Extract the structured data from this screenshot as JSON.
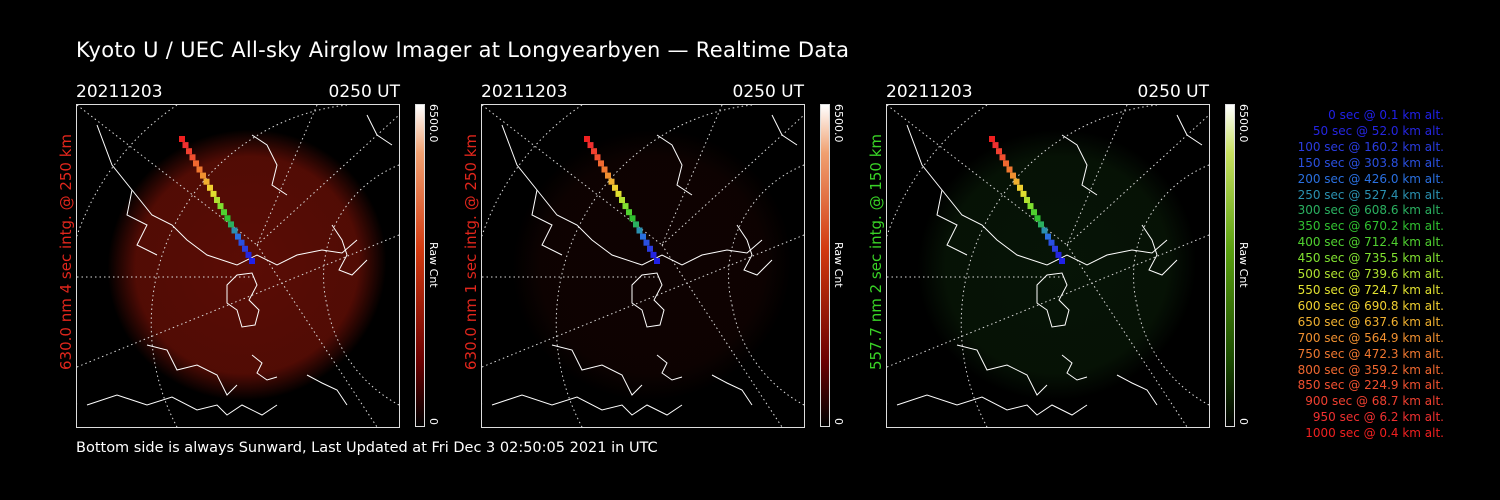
{
  "title": "Kyoto U / UEC All-sky Airglow Imager at Longyearbyen — Realtime Data",
  "footer": "Bottom side is always Sunward, Last Updated at Fri Dec  3 02:50:05 2021 in UTC",
  "panels": [
    {
      "date": "20211203",
      "time": "0250 UT",
      "side_label": "630.0 nm 4 sec intg. @ 250 km",
      "label_color": "#e0261c",
      "cbar_max": "6500.0",
      "cbar_min": "0",
      "cbar_unit": "Raw Cnt",
      "glow": "#6a0f06",
      "glow_level": 0.85
    },
    {
      "date": "20211203",
      "time": "0250 UT",
      "side_label": "630.0 nm 1 sec intg. @ 250 km",
      "label_color": "#e0261c",
      "cbar_max": "6500.0",
      "cbar_min": "0",
      "cbar_unit": "Raw Cnt",
      "glow": "#2a0704",
      "glow_level": 0.35
    },
    {
      "date": "20211203",
      "time": "0250 UT",
      "side_label": "557.7 nm 2 sec intg. @ 150 km",
      "label_color": "#39d226",
      "cbar_max": "6500.0",
      "cbar_min": "0",
      "cbar_unit": "Raw Cnt",
      "glow": "#0f2c0d",
      "glow_level": 0.45
    }
  ],
  "legend": [
    {
      "text": "0 sec @   0.1 km alt.",
      "color": "#2020e8"
    },
    {
      "text": "50 sec @  52.0 km alt.",
      "color": "#2525e0"
    },
    {
      "text": "100 sec @ 160.2 km alt.",
      "color": "#2a3ce0"
    },
    {
      "text": "150 sec @ 303.8 km alt.",
      "color": "#2a50e0"
    },
    {
      "text": "200 sec @ 426.0 km alt.",
      "color": "#2a70e0"
    },
    {
      "text": "250 sec @ 527.4 km alt.",
      "color": "#2a90b0"
    },
    {
      "text": "300 sec @ 608.6 km alt.",
      "color": "#2ab060"
    },
    {
      "text": "350 sec @ 670.2 km alt.",
      "color": "#30c030"
    },
    {
      "text": "400 sec @ 712.4 km alt.",
      "color": "#50d030"
    },
    {
      "text": "450 sec @ 735.5 km alt.",
      "color": "#80e030"
    },
    {
      "text": "500 sec @ 739.6 km alt.",
      "color": "#b0e030"
    },
    {
      "text": "550 sec @ 724.7 km alt.",
      "color": "#e0e030"
    },
    {
      "text": "600 sec @ 690.8 km alt.",
      "color": "#f0d030"
    },
    {
      "text": "650 sec @ 637.6 km alt.",
      "color": "#f0b030"
    },
    {
      "text": "700 sec @ 564.9 km alt.",
      "color": "#f09030"
    },
    {
      "text": "750 sec @ 472.3 km alt.",
      "color": "#f07830"
    },
    {
      "text": "800 sec @ 359.2 km alt.",
      "color": "#f06830"
    },
    {
      "text": "850 sec @ 224.9 km alt.",
      "color": "#f05030"
    },
    {
      "text": "900 sec @  68.7 km alt.",
      "color": "#f04030"
    },
    {
      "text": "950 sec @   6.2 km alt.",
      "color": "#f03030"
    },
    {
      "text": "1000 sec @   0.4 km alt.",
      "color": "#f02020"
    }
  ]
}
